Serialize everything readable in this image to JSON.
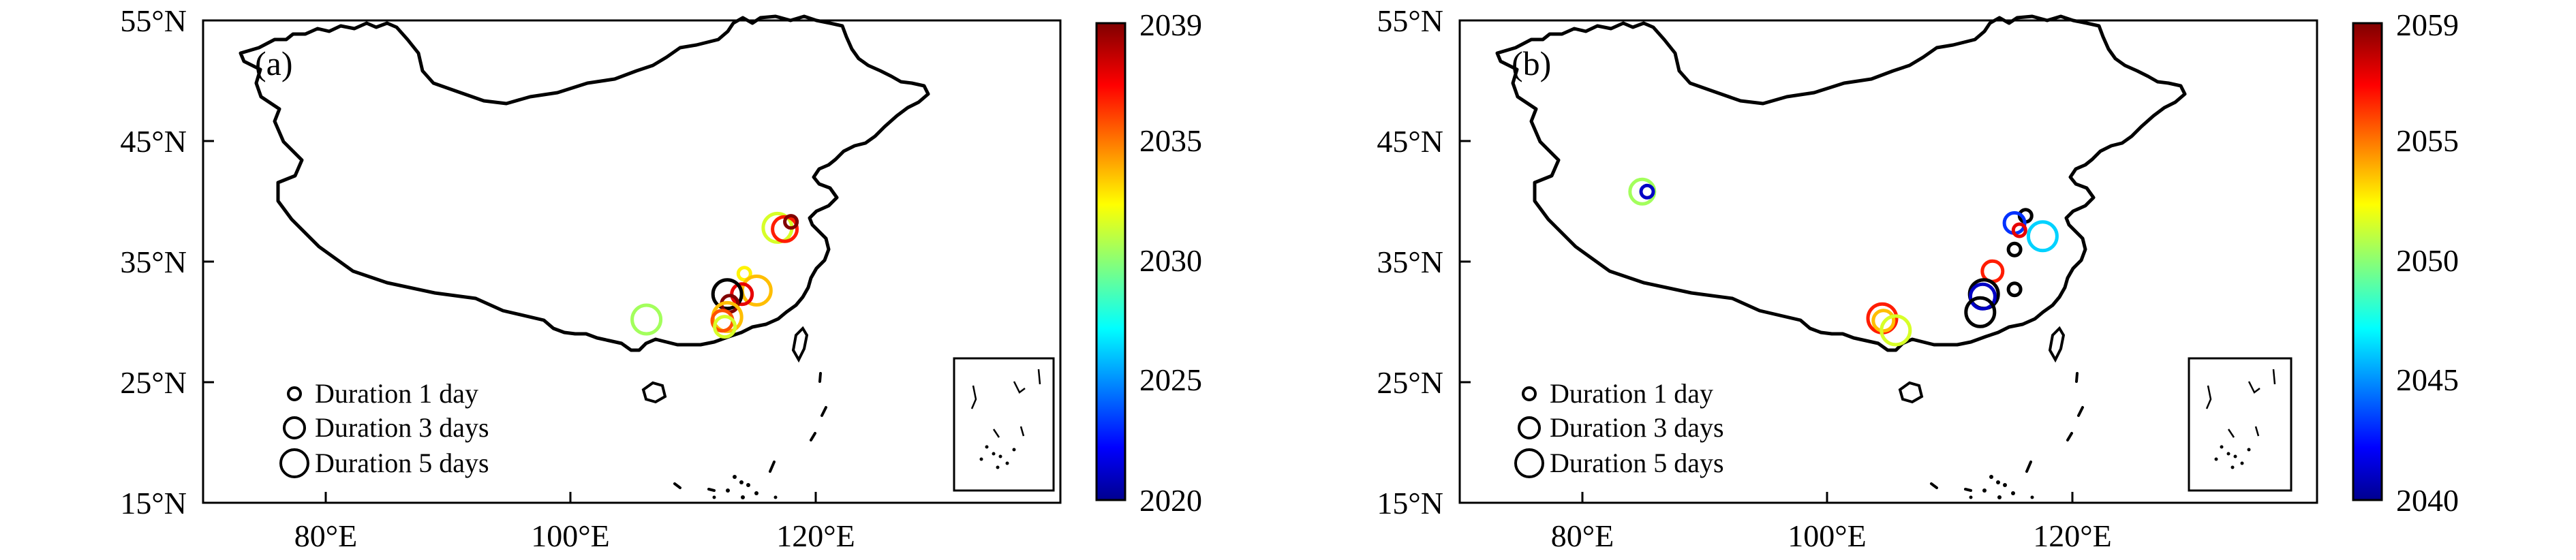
{
  "charts": [
    {
      "label": "(a)",
      "lat_ticks": [
        "55°N",
        "45°N",
        "35°N",
        "25°N",
        "15°N"
      ],
      "lon_ticks": [
        "80°E",
        "100°E",
        "120°E"
      ],
      "colorbar_ticks": [
        "2039",
        "2035",
        "2030",
        "2025",
        "2020"
      ],
      "legend": [
        "Duration 1 day",
        "Duration 3 days",
        "Duration 5 days"
      ]
    },
    {
      "label": "(b)",
      "lat_ticks": [
        "55°N",
        "45°N",
        "35°N",
        "25°N",
        "15°N"
      ],
      "lon_ticks": [
        "80°E",
        "100°E",
        "120°E"
      ],
      "colorbar_ticks": [
        "2059",
        "2055",
        "2050",
        "2045",
        "2040"
      ],
      "legend": [
        "Duration 1 day",
        "Duration 3 days",
        "Duration 5 days"
      ]
    }
  ],
  "chart_data": [
    {
      "type": "scatter",
      "label": "(a)",
      "lon_range": [
        70,
        140
      ],
      "lat_range": [
        15,
        55
      ],
      "x_ticks": [
        80,
        100,
        120
      ],
      "y_ticks": [
        55,
        45,
        35,
        25,
        15
      ],
      "size_legend": [
        {
          "label": "Duration 1 day",
          "duration": 1
        },
        {
          "label": "Duration 3 days",
          "duration": 3
        },
        {
          "label": "Duration 5 days",
          "duration": 5
        }
      ],
      "colorbar": {
        "min": 2020,
        "max": 2039,
        "ticks": [
          2020,
          2025,
          2030,
          2035,
          2039
        ]
      },
      "points": [
        {
          "lon": 116.9,
          "lat": 37.8,
          "year": 2031,
          "duration": 5
        },
        {
          "lon": 117.5,
          "lat": 37.7,
          "year": 2036,
          "duration": 4
        },
        {
          "lon": 118.0,
          "lat": 38.3,
          "year": 2039,
          "duration": 1
        },
        {
          "lon": 106.2,
          "lat": 30.2,
          "year": 2030,
          "duration": 5
        },
        {
          "lon": 114.2,
          "lat": 34.0,
          "year": 2032,
          "duration": 1
        },
        {
          "lon": 115.2,
          "lat": 32.6,
          "year": 2033,
          "duration": 5
        },
        {
          "lon": 114.0,
          "lat": 32.3,
          "year": 2037,
          "duration": 3
        },
        {
          "lon": 112.8,
          "lat": 32.3,
          "year": 2020,
          "duration": 5
        },
        {
          "lon": 113.0,
          "lat": 31.5,
          "year": 2039,
          "duration": 2
        },
        {
          "lon": 112.8,
          "lat": 30.4,
          "year": 2033,
          "duration": 5
        },
        {
          "lon": 112.4,
          "lat": 30.1,
          "year": 2035,
          "duration": 3
        },
        {
          "lon": 112.6,
          "lat": 29.6,
          "year": 2031,
          "duration": 3
        }
      ]
    },
    {
      "type": "scatter",
      "label": "(b)",
      "lon_range": [
        70,
        140
      ],
      "lat_range": [
        15,
        55
      ],
      "x_ticks": [
        80,
        100,
        120
      ],
      "y_ticks": [
        55,
        45,
        35,
        25,
        15
      ],
      "size_legend": [
        {
          "label": "Duration 1 day",
          "duration": 1
        },
        {
          "label": "Duration 3 days",
          "duration": 3
        },
        {
          "label": "Duration 5 days",
          "duration": 5
        }
      ],
      "colorbar": {
        "min": 2040,
        "max": 2059,
        "ticks": [
          2040,
          2045,
          2050,
          2055,
          2059
        ]
      },
      "points": [
        {
          "lon": 84.9,
          "lat": 40.8,
          "year": 2050,
          "duration": 4
        },
        {
          "lon": 85.3,
          "lat": 40.8,
          "year": 2041,
          "duration": 1
        },
        {
          "lon": 116.2,
          "lat": 38.8,
          "year": 2040,
          "duration": 1
        },
        {
          "lon": 115.3,
          "lat": 38.2,
          "year": 2043,
          "duration": 3
        },
        {
          "lon": 115.7,
          "lat": 37.6,
          "year": 2057,
          "duration": 1
        },
        {
          "lon": 117.6,
          "lat": 37.1,
          "year": 2046,
          "duration": 5
        },
        {
          "lon": 115.3,
          "lat": 36.0,
          "year": 2040,
          "duration": 1
        },
        {
          "lon": 113.5,
          "lat": 34.2,
          "year": 2056,
          "duration": 3
        },
        {
          "lon": 112.8,
          "lat": 32.3,
          "year": 2040,
          "duration": 5
        },
        {
          "lon": 112.7,
          "lat": 32.1,
          "year": 2041,
          "duration": 4
        },
        {
          "lon": 115.3,
          "lat": 32.7,
          "year": 2040,
          "duration": 1
        },
        {
          "lon": 112.5,
          "lat": 30.8,
          "year": 2040,
          "duration": 5
        },
        {
          "lon": 104.5,
          "lat": 30.3,
          "year": 2056,
          "duration": 5
        },
        {
          "lon": 104.6,
          "lat": 30.1,
          "year": 2053,
          "duration": 3
        },
        {
          "lon": 105.6,
          "lat": 29.3,
          "year": 2051,
          "duration": 5
        }
      ]
    }
  ]
}
